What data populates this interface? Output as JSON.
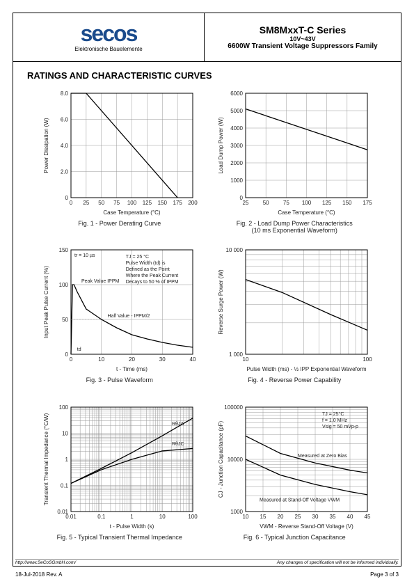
{
  "header": {
    "logo_text": "secos",
    "logo_sub": "Elektronische Bauelemente",
    "series_title": "SM8MxxT-C Series",
    "series_sub": "10V~43V",
    "series_desc": "6600W Transient Voltage Suppressors Family"
  },
  "section_title": "RATINGS AND CHARACTERISTIC CURVES",
  "colors": {
    "logo": "#1a4b8c",
    "grid": "#999999",
    "axis": "#000000",
    "line": "#000000",
    "bg": "#ffffff"
  },
  "fig1": {
    "caption": "Fig. 1 - Power Derating Curve",
    "xlabel": "Case Temperature (°C)",
    "ylabel": "Power Dissipation (W)",
    "xlim": [
      0,
      200
    ],
    "xtick_step": 25,
    "ylim": [
      0,
      8
    ],
    "ytick_step": 2,
    "ytick_labels": [
      "0",
      "2.0",
      "4.0",
      "6.0",
      "8.0"
    ],
    "points": [
      [
        0,
        8
      ],
      [
        25,
        8
      ],
      [
        175,
        0
      ]
    ],
    "scale": "linear"
  },
  "fig2": {
    "caption": "Fig. 2 - Load Dump Power Characteristics",
    "caption_sub": "(10 ms Exponential Waveform)",
    "xlabel": "Case Temperature (°C)",
    "ylabel": "Load Dump Power (W)",
    "xlim": [
      25,
      175
    ],
    "xtick_step": 25,
    "ylim": [
      0,
      6000
    ],
    "ytick_step": 1000,
    "points": [
      [
        25,
        5100
      ],
      [
        175,
        2750
      ]
    ],
    "scale": "linear"
  },
  "fig3": {
    "caption": "Fig. 3 - Pulse Waveform",
    "xlabel": "t - Time (ms)",
    "ylabel": "Input Peak Pulse Current (%)",
    "xlim": [
      0,
      40
    ],
    "xtick_step": 10,
    "ylim": [
      0,
      150
    ],
    "ytick_step": 50,
    "points": [
      [
        0,
        0
      ],
      [
        0.5,
        100
      ],
      [
        1,
        100
      ],
      [
        2,
        90
      ],
      [
        5,
        65
      ],
      [
        10,
        50
      ],
      [
        15,
        38
      ],
      [
        20,
        28
      ],
      [
        25,
        22
      ],
      [
        30,
        17
      ],
      [
        35,
        13
      ],
      [
        40,
        10
      ]
    ],
    "annotations": {
      "tr": "tr = 10 µs",
      "peak": "Peak Value IPPM",
      "half": "Half Value - IPPM/2",
      "td": "td",
      "note": "TJ = 25 °C\nPulse Width (td) is\nDefined as the Point\nWhere the Peak Current\nDecays to 50 % of IPPM"
    },
    "scale": "linear"
  },
  "fig4": {
    "caption": "Fig. 4 - Reverse Power Capability",
    "xlabel": "Pulse Width (ms) - ½ IPP Exponential Waveform",
    "ylabel": "Reverse Surge Power (W)",
    "xlim": [
      10,
      100
    ],
    "ylim": [
      1000,
      10000
    ],
    "xticks": [
      10,
      100
    ],
    "yticks": [
      1000,
      10000
    ],
    "points": [
      [
        10,
        5200
      ],
      [
        20,
        3900
      ],
      [
        50,
        2400
      ],
      [
        100,
        1700
      ]
    ],
    "scale": "log-log"
  },
  "fig5": {
    "caption": "Fig. 5 - Typical Transient Thermal Impedance",
    "xlabel": "t - Pulse Width (s)",
    "ylabel": "Transient Thermal Impedance (°C/W)",
    "xlim": [
      0.01,
      100
    ],
    "ylim": [
      0.01,
      100
    ],
    "xticks": [
      0.01,
      0.1,
      1,
      10,
      100
    ],
    "yticks": [
      0.01,
      0.1,
      1,
      10,
      100
    ],
    "series": [
      {
        "label": "RθJA",
        "points": [
          [
            0.01,
            0.12
          ],
          [
            0.1,
            0.45
          ],
          [
            1,
            1.8
          ],
          [
            10,
            8
          ],
          [
            100,
            38
          ]
        ]
      },
      {
        "label": "RθJC",
        "points": [
          [
            0.01,
            0.12
          ],
          [
            0.1,
            0.4
          ],
          [
            1,
            1.0
          ],
          [
            10,
            2.1
          ],
          [
            100,
            2.6
          ]
        ]
      }
    ],
    "scale": "log-log"
  },
  "fig6": {
    "caption": "Fig. 6 - Typical Junction Capacitance",
    "xlabel": "VWM - Reverse Stand-Off Voltage (V)",
    "ylabel": "CJ - Junction Capacitance (pF)",
    "xlim": [
      10,
      45
    ],
    "xtick_step": 5,
    "ylim": [
      1000,
      100000
    ],
    "yticks": [
      1000,
      10000,
      100000
    ],
    "series": [
      {
        "label": "Measured at Zero Bias",
        "points": [
          [
            10,
            28000
          ],
          [
            20,
            13000
          ],
          [
            30,
            8500
          ],
          [
            40,
            6200
          ],
          [
            45,
            5500
          ]
        ]
      },
      {
        "label": "Measured at Stand-Off Voltage VWM",
        "points": [
          [
            10,
            10000
          ],
          [
            20,
            5000
          ],
          [
            30,
            3300
          ],
          [
            40,
            2400
          ],
          [
            45,
            2100
          ]
        ]
      }
    ],
    "note": "TJ = 25°C\nf = 1.0 MHz\nVsig = 50 mVp-p",
    "scale": "lin-log"
  },
  "footer": {
    "url": "http://www.SeCoSGmbH.com/",
    "disclaimer": "Any changes of specification will not be informed individually.",
    "date_rev": "18-Jul-2018 Rev. A",
    "page": "Page 3 of 3"
  }
}
